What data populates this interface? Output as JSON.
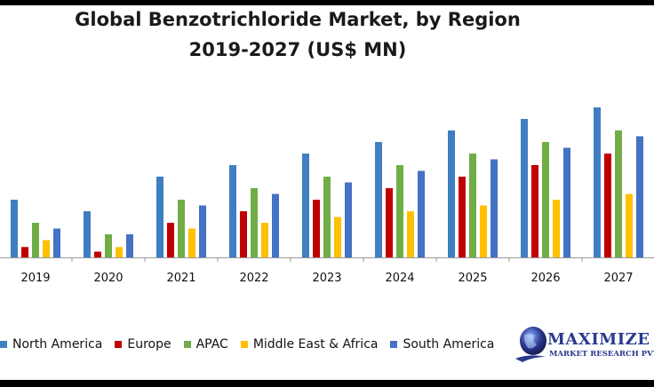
{
  "chart_data": {
    "type": "bar",
    "title": "Global  Benzotrichloride  Market,  by Region",
    "subtitle": "2019-2027 (US$ MN)",
    "categories": [
      "2019",
      "2020",
      "2021",
      "2022",
      "2023",
      "2024",
      "2025",
      "2026",
      "2027"
    ],
    "series": [
      {
        "name": "North America",
        "color": "#3f7ec1",
        "values": [
          50,
          40,
          70,
          80,
          90,
          100,
          110,
          120,
          130
        ]
      },
      {
        "name": "Europe",
        "color": "#c00000",
        "values": [
          9,
          5,
          30,
          40,
          50,
          60,
          70,
          80,
          90
        ]
      },
      {
        "name": "APAC",
        "color": "#70ad47",
        "values": [
          30,
          20,
          50,
          60,
          70,
          80,
          90,
          100,
          110
        ]
      },
      {
        "name": "Middle East & Africa",
        "color": "#ffc000",
        "values": [
          15,
          9,
          25,
          30,
          35,
          40,
          45,
          50,
          55
        ]
      },
      {
        "name": "South America",
        "color": "#4472c4",
        "values": [
          25,
          20,
          45,
          55,
          65,
          75,
          85,
          95,
          105
        ]
      }
    ],
    "ylim": [
      0,
      140
    ],
    "grid": false,
    "legend": "bottom"
  },
  "logo": {
    "word": "MAXIMIZE",
    "sub": "MARKET RESEARCH PVT. LTD."
  },
  "colors": {
    "title": "#1a1a1a",
    "axis": "#9a9a9a",
    "logo": "#2b3990"
  }
}
